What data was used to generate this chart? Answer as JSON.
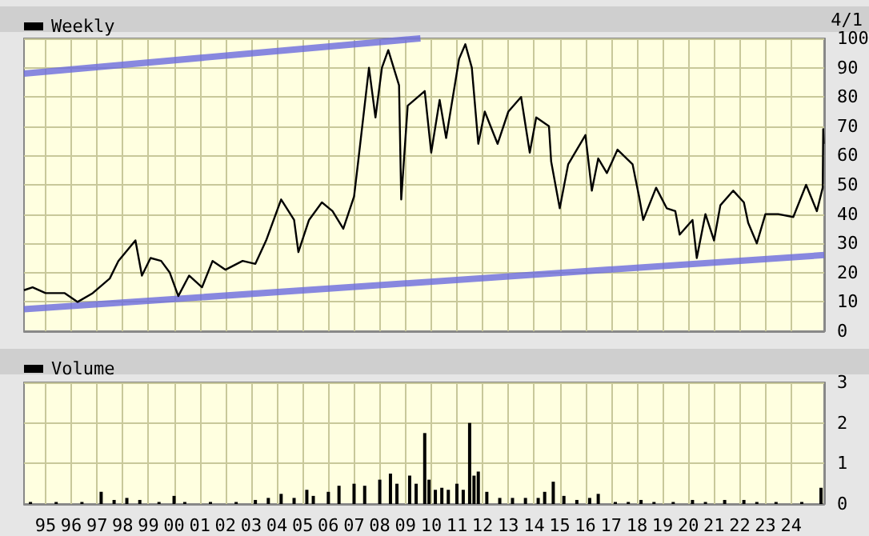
{
  "chart_data": [
    {
      "type": "line",
      "annotations": [
        "4/1"
      ],
      "legend": "top left",
      "grid": true,
      "tick_labels": "y",
      "xlim": [
        "1994-03",
        "2025-04-15"
      ],
      "ylim": [
        0,
        100
      ],
      "yticks": [
        0,
        10,
        20,
        30,
        40,
        50,
        60,
        70,
        80,
        90,
        100
      ],
      "xticks": [
        {
          "value": "1995-01",
          "label": null
        },
        {
          "value": "1996-01",
          "label": null
        },
        {
          "value": "1997-01",
          "label": null
        },
        {
          "value": "1998-01",
          "label": null
        },
        {
          "value": "1999-01",
          "label": null
        },
        {
          "value": "2000-01",
          "label": null
        },
        {
          "value": "2001-01",
          "label": null
        },
        {
          "value": "2002-01",
          "label": null
        },
        {
          "value": "2003-01",
          "label": null
        },
        {
          "value": "2004-01",
          "label": null
        },
        {
          "value": "2005-01",
          "label": null
        },
        {
          "value": "2006-01",
          "label": null
        },
        {
          "value": "2007-01",
          "label": null
        },
        {
          "value": "2008-01",
          "label": null
        },
        {
          "value": "2009-01",
          "label": null
        },
        {
          "value": "2010-01",
          "label": null
        },
        {
          "value": "2011-01",
          "label": null
        },
        {
          "value": "2012-01",
          "label": null
        },
        {
          "value": "2013-01",
          "label": null
        },
        {
          "value": "2014-01",
          "label": null
        },
        {
          "value": "2015-01",
          "label": null
        },
        {
          "value": "2016-01",
          "label": null
        },
        {
          "value": "2017-01",
          "label": null
        },
        {
          "value": "2018-01",
          "label": null
        },
        {
          "value": "2019-01",
          "label": null
        },
        {
          "value": "2020-01",
          "label": null
        },
        {
          "value": "2021-01",
          "label": null
        },
        {
          "value": "2022-01",
          "label": null
        },
        {
          "value": "2023-01",
          "label": null
        },
        {
          "value": "2024-01",
          "label": null
        }
      ],
      "series": [
        {
          "name": "Weekly",
          "color": "#000000",
          "x": [
            "1994-03",
            "1994-07",
            "1995-01",
            "1995-10",
            "1996-04",
            "1996-11",
            "1997-07",
            "1997-11",
            "1998-07",
            "1998-10",
            "1999-02",
            "1999-07",
            "1999-11",
            "2000-03",
            "2000-08",
            "2001-02",
            "2001-07",
            "2002-01",
            "2002-09",
            "2003-03",
            "2003-08",
            "2004-03",
            "2004-09",
            "2004-11",
            "2005-04",
            "2005-10",
            "2006-03",
            "2006-08",
            "2007-01",
            "2007-03",
            "2007-08",
            "2007-11",
            "2008-02",
            "2008-05",
            "2008-10",
            "2008-11",
            "2009-02",
            "2009-10",
            "2010-01",
            "2010-05",
            "2010-08",
            "2011-02",
            "2011-05",
            "2011-08",
            "2011-11",
            "2012-02",
            "2012-08",
            "2013-01",
            "2013-07",
            "2013-11",
            "2014-02",
            "2014-08",
            "2014-09",
            "2015-01",
            "2015-05",
            "2016-01",
            "2016-04",
            "2016-07",
            "2016-11",
            "2017-04",
            "2017-11",
            "2018-02",
            "2018-04",
            "2018-10",
            "2019-03",
            "2019-07",
            "2019-09",
            "2020-03",
            "2020-05",
            "2020-09",
            "2021-01",
            "2021-04",
            "2021-10",
            "2022-03",
            "2022-05",
            "2022-09",
            "2023-01",
            "2023-07",
            "2024-02",
            "2024-08",
            "2025-01",
            "2025-03-25",
            "2025-04-01",
            "2025-04-08"
          ],
          "values": [
            14,
            15,
            13,
            13,
            10,
            13,
            18,
            24,
            31,
            19,
            25,
            24,
            20,
            12,
            19,
            15,
            24,
            21,
            24,
            23,
            31,
            45,
            38,
            27,
            38,
            44,
            41,
            35,
            46,
            58,
            90,
            73,
            90,
            96,
            84,
            45,
            77,
            82,
            61,
            79,
            66,
            93,
            98,
            90,
            64,
            75,
            64,
            75,
            80,
            61,
            73,
            70,
            58,
            42,
            57,
            67,
            48,
            59,
            54,
            62,
            57,
            46,
            38,
            49,
            42,
            41,
            33,
            38,
            25,
            40,
            31,
            43,
            48,
            44,
            37,
            30,
            40,
            40,
            39,
            50,
            41,
            49,
            69,
            64
          ]
        },
        {
          "type": "line",
          "color": "#6a6ade",
          "x": [
            "1994-03",
            "2009-08"
          ],
          "values": [
            88,
            100
          ]
        },
        {
          "type": "line",
          "color": "#6a6ade",
          "x": [
            "1994-03",
            "2025-04-15"
          ],
          "values": [
            7.5,
            26
          ]
        }
      ]
    },
    {
      "type": "bar",
      "legend": "top left",
      "grid": true,
      "xlim": [
        "1994-03",
        "2025-04-15"
      ],
      "ylim": [
        0,
        3
      ],
      "yticks": [
        0,
        1,
        2,
        3
      ],
      "xticks": [
        {
          "value": "1995-01",
          "label": "95"
        },
        {
          "value": "1996-01",
          "label": "96"
        },
        {
          "value": "1997-01",
          "label": "97"
        },
        {
          "value": "1998-01",
          "label": "98"
        },
        {
          "value": "1999-01",
          "label": "99"
        },
        {
          "value": "2000-01",
          "label": "00"
        },
        {
          "value": "2001-01",
          "label": "01"
        },
        {
          "value": "2002-01",
          "label": "02"
        },
        {
          "value": "2003-01",
          "label": "03"
        },
        {
          "value": "2004-01",
          "label": "04"
        },
        {
          "value": "2005-01",
          "label": "05"
        },
        {
          "value": "2006-01",
          "label": "06"
        },
        {
          "value": "2007-01",
          "label": "07"
        },
        {
          "value": "2008-01",
          "label": "08"
        },
        {
          "value": "2009-01",
          "label": "09"
        },
        {
          "value": "2010-01",
          "label": "10"
        },
        {
          "value": "2011-01",
          "label": "11"
        },
        {
          "value": "2012-01",
          "label": "12"
        },
        {
          "value": "2013-01",
          "label": "13"
        },
        {
          "value": "2014-01",
          "label": "14"
        },
        {
          "value": "2015-01",
          "label": "15"
        },
        {
          "value": "2016-01",
          "label": "16"
        },
        {
          "value": "2017-01",
          "label": "17"
        },
        {
          "value": "2018-01",
          "label": "18"
        },
        {
          "value": "2019-01",
          "label": "19"
        },
        {
          "value": "2020-01",
          "label": "20"
        },
        {
          "value": "2021-01",
          "label": "21"
        },
        {
          "value": "2022-01",
          "label": "22"
        },
        {
          "value": "2023-01",
          "label": "23"
        },
        {
          "value": "2024-01",
          "label": "24"
        }
      ],
      "series": [
        {
          "name": "Volume",
          "color": "#000000",
          "x": [
            "1994-06",
            "1995-06",
            "1996-06",
            "1997-03",
            "1997-09",
            "1998-03",
            "1998-09",
            "1999-06",
            "2000-01",
            "2000-06",
            "2001-06",
            "2002-06",
            "2003-03",
            "2003-09",
            "2004-03",
            "2004-09",
            "2005-03",
            "2005-06",
            "2006-01",
            "2006-06",
            "2007-01",
            "2007-06",
            "2008-01",
            "2008-06",
            "2008-09",
            "2009-03",
            "2009-06",
            "2009-10",
            "2009-12",
            "2010-03",
            "2010-06",
            "2010-09",
            "2011-01",
            "2011-04",
            "2011-07",
            "2011-09",
            "2011-11",
            "2012-03",
            "2012-09",
            "2013-03",
            "2013-09",
            "2014-03",
            "2014-06",
            "2014-10",
            "2015-03",
            "2015-09",
            "2016-03",
            "2016-07",
            "2017-03",
            "2017-09",
            "2018-03",
            "2018-09",
            "2019-06",
            "2020-03",
            "2020-09",
            "2021-06",
            "2022-03",
            "2022-09",
            "2023-06",
            "2024-06",
            "2025-03"
          ],
          "values": [
            0.05,
            0.05,
            0.05,
            0.3,
            0.1,
            0.15,
            0.1,
            0.05,
            0.2,
            0.05,
            0.05,
            0.05,
            0.1,
            0.15,
            0.25,
            0.15,
            0.35,
            0.2,
            0.3,
            0.45,
            0.5,
            0.45,
            0.6,
            0.75,
            0.5,
            0.7,
            0.5,
            1.75,
            0.6,
            0.35,
            0.4,
            0.35,
            0.5,
            0.35,
            2.0,
            0.7,
            0.8,
            0.3,
            0.15,
            0.15,
            0.15,
            0.15,
            0.3,
            0.55,
            0.2,
            0.1,
            0.15,
            0.25,
            0.05,
            0.05,
            0.1,
            0.05,
            0.05,
            0.1,
            0.05,
            0.1,
            0.1,
            0.05,
            0.05,
            0.05,
            0.4
          ]
        }
      ]
    }
  ]
}
